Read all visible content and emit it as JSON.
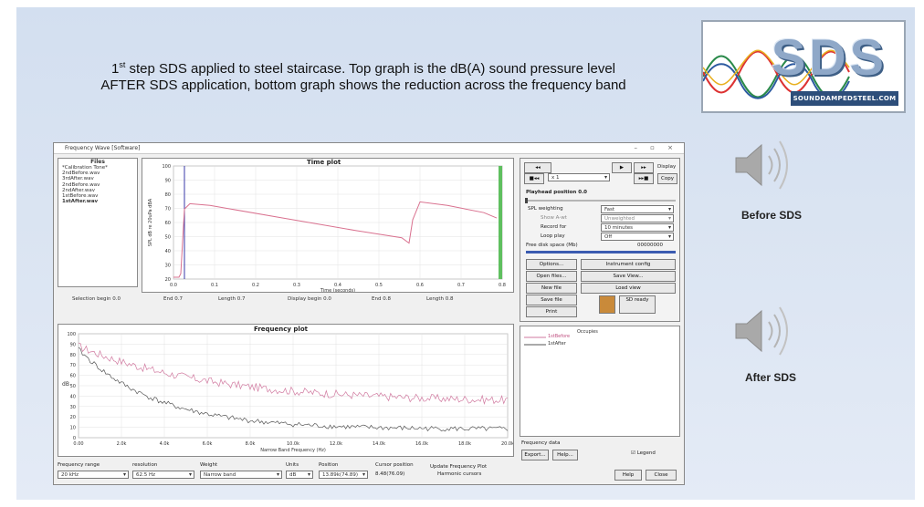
{
  "slide": {
    "caption_line1_pre": "1",
    "caption_line1_sup": "st",
    "caption_line1_post": " step SDS applied to steel staircase. Top graph is the dB(A) sound pressure level",
    "caption_line2": "AFTER SDS application, bottom graph shows the reduction across the frequency band",
    "logo_text": "SDS",
    "logo_subtitle": "SOUNDDAMPEDSTEEL.COM",
    "before_label": "Before SDS",
    "after_label": "After SDS",
    "colors": {
      "background": "#d8e3f2",
      "logo_blue": "#2d4e7a",
      "speaker_grey": "#a9a9a9"
    },
    "icons": [
      "speaker-icon",
      "speaker-icon"
    ]
  },
  "window": {
    "title": "Frequency Wave [Software]",
    "controls": "– ▫ ×",
    "files_title": "Files",
    "files": [
      "*Calibration Tone*",
      "2ndBefore.wav",
      "3rdAfter.wav",
      "2ndBefore.wav",
      "2ndAfter.wav",
      "1stBefore.wav",
      "1stAfter.wav"
    ],
    "selected_file_index": 6,
    "time_plot": {
      "title": "Time plot",
      "ylabel": "SPL dB re 20uPa dBA",
      "xlabel": "Time (seconds)",
      "yticks": [
        "100",
        "90",
        "80",
        "70",
        "60",
        "50",
        "40",
        "30",
        "20"
      ],
      "xticks": [
        "0.0",
        "0.1",
        "0.2",
        "0.3",
        "0.4",
        "0.5",
        "0.6",
        "0.7",
        "0.8"
      ]
    },
    "time_stats": {
      "selection_begin": "Selection begin 0.0",
      "end": "End 0.7",
      "length": "Length 0.7",
      "display_begin": "Display begin 0.0",
      "display_end": "End 0.8",
      "display_length": "Length 0.8"
    },
    "frequency_plot": {
      "title": "Frequency plot",
      "xlabel": "Narrow Band Frequency (Hz)",
      "ylabel": "dB",
      "yticks": [
        "100",
        "90",
        "80",
        "70",
        "60",
        "50",
        "40",
        "30",
        "20",
        "10",
        "0"
      ],
      "xticks": [
        "0.00",
        "2.0k",
        "4.0k",
        "6.0k",
        "8.0k",
        "10.0k",
        "12.0k",
        "14.0k",
        "16.0k",
        "18.0k",
        "20.0k"
      ]
    },
    "controls_panel": {
      "transport": [
        "◂◂",
        "▶",
        "▸▸",
        "■◂◂",
        "▸▸■"
      ],
      "speed_value": "x 1",
      "display_label": "Display",
      "copy_label": "Copy",
      "playhead_position": "Playhead position 0.0",
      "spl_weighting_label": "SPL weighting",
      "spl_weighting_value": "Fast",
      "freq_weight_label": "Show A-wt",
      "freq_weight_value": "Unweighted",
      "record_for_label": "Record for",
      "record_for_value": "10 minutes",
      "loop_play_label": "Loop play",
      "loop_play_value": "Off",
      "free_disk_label": "Free disk space (Mb)",
      "free_disk_value": "00000000",
      "buttons": [
        "Options...",
        "Instrument config",
        "Open files...",
        "Save View...",
        "New file",
        "Load view",
        "Save file",
        "Print"
      ],
      "status_button": "SD ready"
    },
    "legend": {
      "entries": [
        "Occupies",
        "1stBefore",
        "1stAfter"
      ],
      "colors": [
        "#d17aa0",
        "#555555"
      ]
    },
    "frequency_data_label": "Frequency data",
    "export_button": "Export...",
    "help_button": "Help...",
    "legend_checkbox": "Legend",
    "bottom": {
      "frequency_range_label": "Frequency range",
      "frequency_range_value": "20 kHz",
      "resolution_label": "resolution",
      "resolution_value": "62.5 Hz",
      "weight_label": "Weight",
      "weight_value": "Narrow band",
      "units_label": "Units",
      "units_value": "dB",
      "position_label": "Position",
      "position_value": "13.89k(74.89)",
      "cursor_label": "Cursor position",
      "cursor_value": "8.48(76.09)",
      "update_label": "Update Frequency Plot",
      "harmonic_label": "Harmonic cursors",
      "help_btn": "Help",
      "close_btn": "Close"
    }
  }
}
